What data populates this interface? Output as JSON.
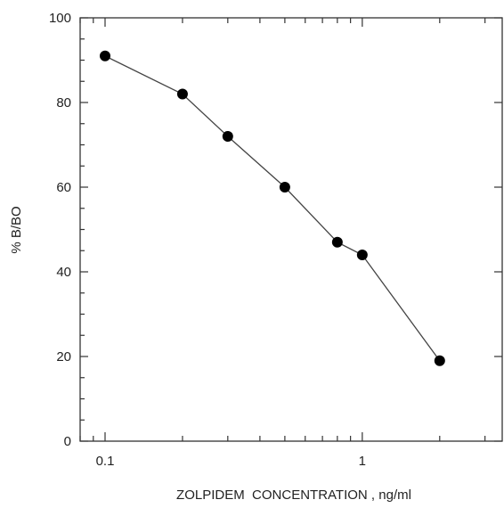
{
  "chart_data": {
    "type": "line",
    "title": "",
    "xlabel": "ZOLPIDEM  CONCENTRATION , ng/ml",
    "ylabel": "% B/BO",
    "x_scale": "log",
    "xlim": [
      0.08,
      3.5
    ],
    "ylim": [
      0,
      100
    ],
    "x_tick_labels": [
      {
        "value": 0.1,
        "label": "0.1"
      },
      {
        "value": 1,
        "label": "1"
      }
    ],
    "y_tick_labels": [
      {
        "value": 0,
        "label": "0"
      },
      {
        "value": 20,
        "label": "20"
      },
      {
        "value": 40,
        "label": "40"
      },
      {
        "value": 60,
        "label": "60"
      },
      {
        "value": 80,
        "label": "80"
      },
      {
        "value": 100,
        "label": "100"
      }
    ],
    "grid": false,
    "legend": "none",
    "series": [
      {
        "x": [
          0.1,
          0.2,
          0.3,
          0.5,
          0.8,
          1.0,
          2.0
        ],
        "y": [
          91,
          82,
          72,
          60,
          47,
          44,
          19
        ]
      }
    ]
  }
}
